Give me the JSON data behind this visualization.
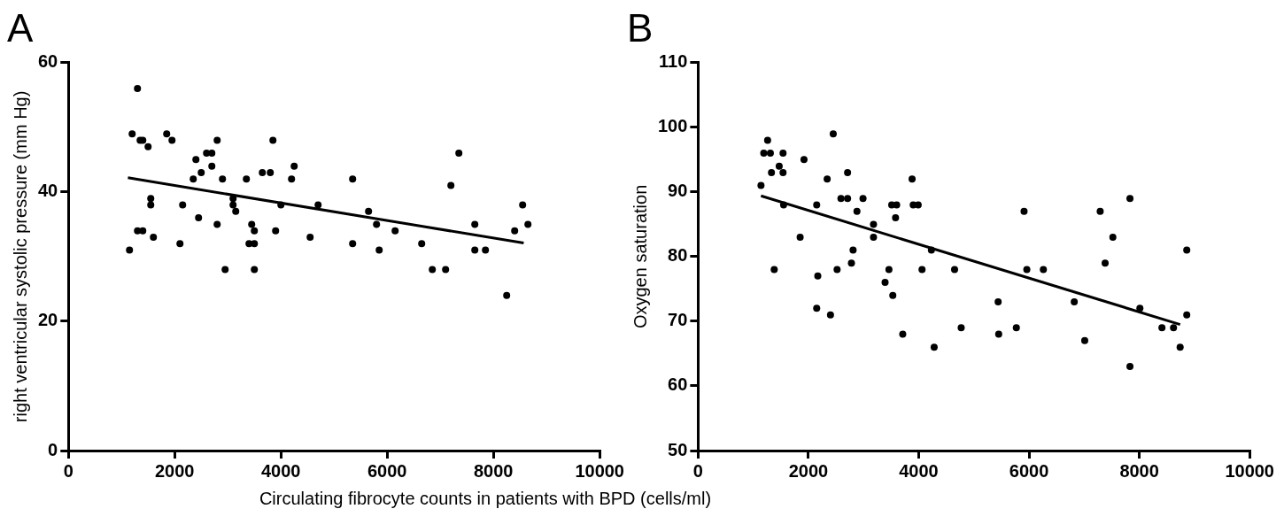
{
  "chart_data": [
    {
      "type": "scatter",
      "title": "A",
      "xlabel": "Circulating fibrocyte counts in patients with BPD (cells/ml)",
      "ylabel": "right ventricular systolic pressure (mm Hg)",
      "xlim": [
        0,
        10000
      ],
      "xticks": [
        0,
        2000,
        4000,
        6000,
        8000,
        10000
      ],
      "ylim": [
        0,
        60
      ],
      "yticks": [
        0,
        20,
        40,
        60
      ],
      "grid": false,
      "legend": false,
      "marker": "circle",
      "series": [
        {
          "color": "#000000",
          "x": [
            1150,
            1200,
            1300,
            1300,
            1350,
            1400,
            1400,
            1500,
            1550,
            1550,
            1600,
            1850,
            1950,
            2100,
            2150,
            2350,
            2400,
            2450,
            2500,
            2600,
            2700,
            2700,
            2800,
            2800,
            2900,
            2950,
            3100,
            3100,
            3150,
            3350,
            3400,
            3450,
            3500,
            3500,
            3500,
            3650,
            3800,
            3850,
            3900,
            4000,
            4200,
            4250,
            4550,
            4700,
            5350,
            5350,
            5650,
            5800,
            5850,
            6150,
            6650,
            6850,
            7100,
            7200,
            7350,
            7650,
            7650,
            7850,
            8250,
            8400,
            8550,
            8650
          ],
          "values": [
            31,
            49,
            56,
            34,
            48,
            48,
            34,
            47,
            39,
            38,
            33,
            49,
            48,
            32,
            38,
            42,
            45,
            36,
            43,
            46,
            46,
            44,
            48,
            35,
            42,
            28,
            39,
            38,
            37,
            42,
            32,
            35,
            34,
            28,
            32,
            43,
            43,
            48,
            34,
            38,
            42,
            44,
            33,
            38,
            32,
            42,
            37,
            35,
            31,
            34,
            32,
            28,
            28,
            41,
            46,
            35,
            31,
            31,
            24,
            34,
            38,
            35
          ]
        },
        {
          "type": "line",
          "color": "#000000",
          "marker": "none",
          "x": [
            1120,
            8570
          ],
          "values": [
            42.2,
            32.1
          ]
        }
      ]
    },
    {
      "type": "scatter",
      "title": "B",
      "ylabel": "Oxygen saturation",
      "xlim": [
        0,
        10000
      ],
      "xticks": [
        0,
        2000,
        4000,
        6000,
        8000,
        10000
      ],
      "ylim": [
        50,
        110
      ],
      "yticks": [
        50,
        60,
        70,
        80,
        90,
        100,
        110
      ],
      "grid": false,
      "legend": false,
      "marker": "circle",
      "series": [
        {
          "color": "#000000",
          "x": [
            1260,
            1140,
            1190,
            1310,
            1540,
            1330,
            1470,
            1540,
            1550,
            1920,
            2450,
            1850,
            1380,
            2150,
            2340,
            2170,
            2150,
            2400,
            2590,
            2710,
            2710,
            2990,
            2880,
            2520,
            2810,
            2780,
            3180,
            3180,
            3510,
            3600,
            3580,
            3880,
            3900,
            3990,
            3460,
            3390,
            3530,
            3710,
            4060,
            4230,
            4280,
            4650,
            4770,
            5910,
            5960,
            6260,
            5440,
            5450,
            5770,
            6820,
            7010,
            7290,
            7830,
            7520,
            7380,
            8010,
            7830,
            8410,
            8620,
            8740,
            8860,
            8860
          ],
          "values": [
            98,
            91,
            96,
            96,
            96,
            93,
            94,
            93,
            88,
            95,
            99,
            83,
            78,
            88,
            92,
            77,
            72,
            71,
            89,
            89,
            93,
            89,
            87,
            78,
            81,
            79,
            85,
            83,
            88,
            88,
            86,
            92,
            88,
            88,
            78,
            76,
            74,
            68,
            78,
            81,
            66,
            78,
            69,
            87,
            78,
            78,
            73,
            68,
            69,
            73,
            67,
            87,
            89,
            83,
            79,
            72,
            63,
            69,
            69,
            66,
            71,
            81
          ]
        },
        {
          "type": "line",
          "color": "#000000",
          "marker": "none",
          "x": [
            1140,
            8740
          ],
          "values": [
            89.4,
            69.5
          ]
        }
      ]
    }
  ]
}
